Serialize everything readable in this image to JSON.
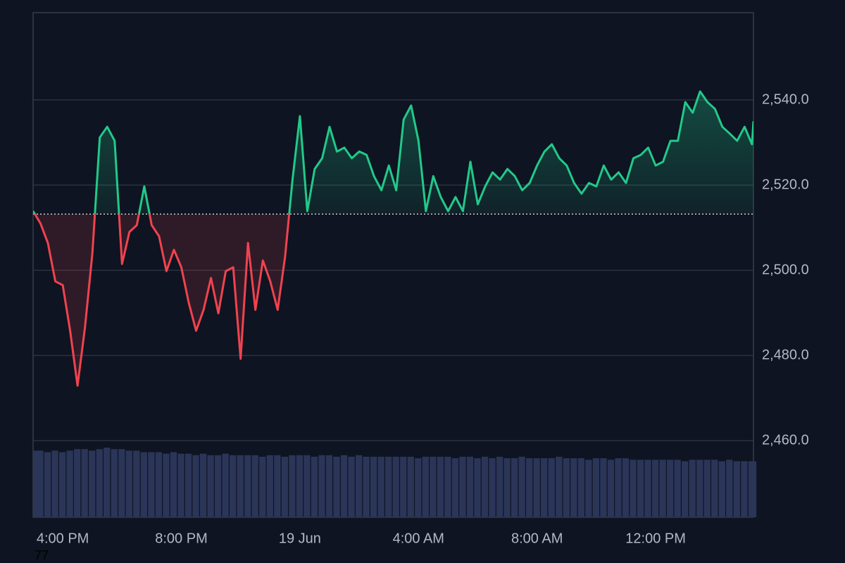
{
  "chart_data": {
    "type": "baseline",
    "x": [
      0,
      0.25,
      0.5,
      0.75,
      1,
      1.25,
      1.5,
      1.75,
      2,
      2.25,
      2.5,
      2.75,
      3,
      3.25,
      3.5,
      3.75,
      4,
      4.25,
      4.5,
      4.75,
      5,
      5.25,
      5.5,
      5.75,
      6,
      6.25,
      6.5,
      6.75,
      7,
      7.25,
      7.5,
      7.75,
      8,
      8.25,
      8.5,
      8.75,
      9,
      9.25,
      9.5,
      9.75,
      10,
      10.25,
      10.5,
      10.75,
      11,
      11.25,
      11.5,
      11.75,
      12,
      12.25,
      12.5,
      12.75,
      13,
      13.25,
      13.5,
      13.75,
      14,
      14.25,
      14.5,
      14.75,
      15,
      15.25,
      15.5,
      15.75,
      16,
      16.25,
      16.5,
      16.75,
      17,
      17.25,
      17.5,
      17.75,
      18,
      18.25,
      18.5,
      18.75,
      19,
      19.25,
      19.5,
      19.75,
      20,
      20.25,
      20.5,
      20.75,
      21,
      21.25,
      21.5,
      21.75,
      22,
      22.25,
      22.5,
      22.75,
      23,
      23.25,
      23.5,
      23.75,
      24,
      24.25,
      24.3
    ],
    "series": [
      {
        "values": [
          2513.9,
          2511,
          2506.4,
          2497.4,
          2496.5,
          2485.8,
          2472.9,
          2486.6,
          2504,
          2531.2,
          2533.7,
          2530.4,
          2501.5,
          2509,
          2510.6,
          2519.7,
          2510.6,
          2508,
          2499.8,
          2504.8,
          2500.7,
          2492.4,
          2485.8,
          2490.7,
          2498.2,
          2489.9,
          2499.8,
          2500.7,
          2479.2,
          2506.4,
          2490.7,
          2502.3,
          2497.4,
          2490.7,
          2503.1,
          2521.3,
          2536.2,
          2513.9,
          2523.8,
          2526.3,
          2533.7,
          2527.9,
          2528.8,
          2526.3,
          2527.9,
          2527.1,
          2522.1,
          2518.8,
          2524.6,
          2518.8,
          2535.4,
          2538.7,
          2530.4,
          2513.9,
          2522.1,
          2517.2,
          2513.9,
          2517.2,
          2513.9,
          2525.5,
          2515.5,
          2519.7,
          2523,
          2521.3,
          2523.8,
          2522.1,
          2518.8,
          2520.5,
          2524.6,
          2527.9,
          2529.6,
          2526.3,
          2524.6,
          2520.5,
          2518,
          2520.5,
          2519.7,
          2524.6,
          2521.3,
          2523,
          2520.5,
          2526.3,
          2527.1,
          2528.8,
          2524.6,
          2525.5,
          2530.4,
          2530.4,
          2539.5,
          2537,
          2542,
          2539.5,
          2537.9,
          2533.7,
          2532.1,
          2530.4,
          2533.7,
          2529.6,
          2535
        ],
        "up_color": "#22c98a",
        "down_color": "#f0434f"
      },
      {
        "values": [
          44,
          44,
          43,
          44,
          43,
          44,
          45,
          45,
          44,
          45,
          46,
          45,
          45,
          44,
          44,
          43,
          43,
          43,
          42,
          43,
          42,
          42,
          41,
          42,
          41,
          41,
          42,
          41,
          41,
          41,
          41,
          40,
          41,
          41,
          40,
          41,
          41,
          41,
          40,
          41,
          41,
          40,
          41,
          40,
          41,
          40,
          40,
          40,
          40,
          40,
          40,
          40,
          39,
          40,
          40,
          40,
          40,
          39,
          40,
          40,
          39,
          40,
          39,
          40,
          39,
          39,
          40,
          39,
          39,
          39,
          39,
          40,
          39,
          39,
          39,
          38,
          39,
          39,
          38,
          39,
          39,
          38,
          38,
          38,
          38,
          38,
          38,
          38,
          37,
          38,
          38,
          38,
          38,
          37,
          38,
          37,
          37,
          37,
          37
        ],
        "axis": "volume",
        "color": "#2a3558"
      }
    ],
    "baseline": 2513.2,
    "xlim": [
      0,
      24.3
    ],
    "xticks": [
      {
        "value": 1,
        "label": "4:00 PM"
      },
      {
        "value": 5,
        "label": "8:00 PM"
      },
      {
        "value": 9,
        "label": "19 Jun"
      },
      {
        "value": 13,
        "label": "4:00 AM"
      },
      {
        "value": 17,
        "label": "8:00 AM"
      },
      {
        "value": 21,
        "label": "12:00 PM"
      }
    ],
    "ylim": [
      2442,
      2560.5
    ],
    "yticks": [
      {
        "value": 2460,
        "label": "2,460.0"
      },
      {
        "value": 2480,
        "label": "2,480.0"
      },
      {
        "value": 2500,
        "label": "2,500.0"
      },
      {
        "value": 2520,
        "label": "2,520.0"
      },
      {
        "value": 2540,
        "label": "2,540.0"
      }
    ],
    "volume_lim": [
      0,
      100
    ],
    "grid": true,
    "watermark": "77"
  }
}
